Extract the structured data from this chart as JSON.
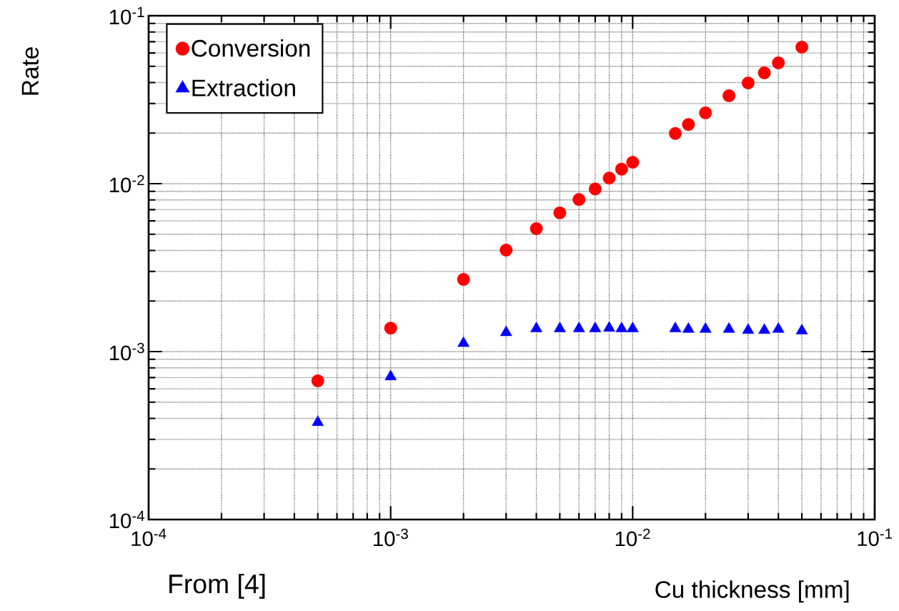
{
  "chart_data": {
    "type": "scatter",
    "xlabel": "Cu thickness [mm]",
    "ylabel": "Rate",
    "log": "xy",
    "grid": true,
    "legend": "top left",
    "annotations": [
      "From [4]"
    ],
    "xlim": [
      0.0001,
      0.1
    ],
    "ylim": [
      0.0001,
      0.1
    ],
    "xticks": [
      {
        "value": 0.0001,
        "label": "10$^{-4}$"
      },
      {
        "value": 0.001,
        "label": "10$^{-3}$"
      },
      {
        "value": 0.01,
        "label": "10$^{-2}$"
      },
      {
        "value": 0.1,
        "label": "10$^{-1}$"
      }
    ],
    "yticks": [
      {
        "value": 0.0001,
        "label": "10$^{-4}$"
      },
      {
        "value": 0.001,
        "label": "10$^{-3}$"
      },
      {
        "value": 0.01,
        "label": "10$^{-2}$"
      },
      {
        "value": 0.1,
        "label": "10$^{-1}$"
      }
    ],
    "x": [
      0.0005,
      0.001,
      0.002,
      0.003,
      0.004,
      0.005,
      0.006,
      0.007,
      0.008,
      0.009,
      0.01,
      0.015,
      0.017,
      0.02,
      0.025,
      0.03,
      0.035,
      0.04,
      0.05
    ],
    "series": [
      {
        "name": "Conversion",
        "color": "#ff0000",
        "marker": "circle",
        "values": [
          0.00067,
          0.00138,
          0.00269,
          0.00402,
          0.0054,
          0.0067,
          0.00805,
          0.0093,
          0.0108,
          0.0122,
          0.0134,
          0.0199,
          0.0225,
          0.0264,
          0.0334,
          0.0398,
          0.0457,
          0.0524,
          0.065
        ]
      },
      {
        "name": "Extraction",
        "color": "#0000ff",
        "marker": "triangle",
        "values": [
          0.000379,
          0.00071,
          0.00112,
          0.0013,
          0.00137,
          0.00137,
          0.00137,
          0.00137,
          0.00138,
          0.00137,
          0.00137,
          0.00137,
          0.00136,
          0.00136,
          0.00136,
          0.00134,
          0.00134,
          0.00136,
          0.00133
        ]
      }
    ]
  }
}
